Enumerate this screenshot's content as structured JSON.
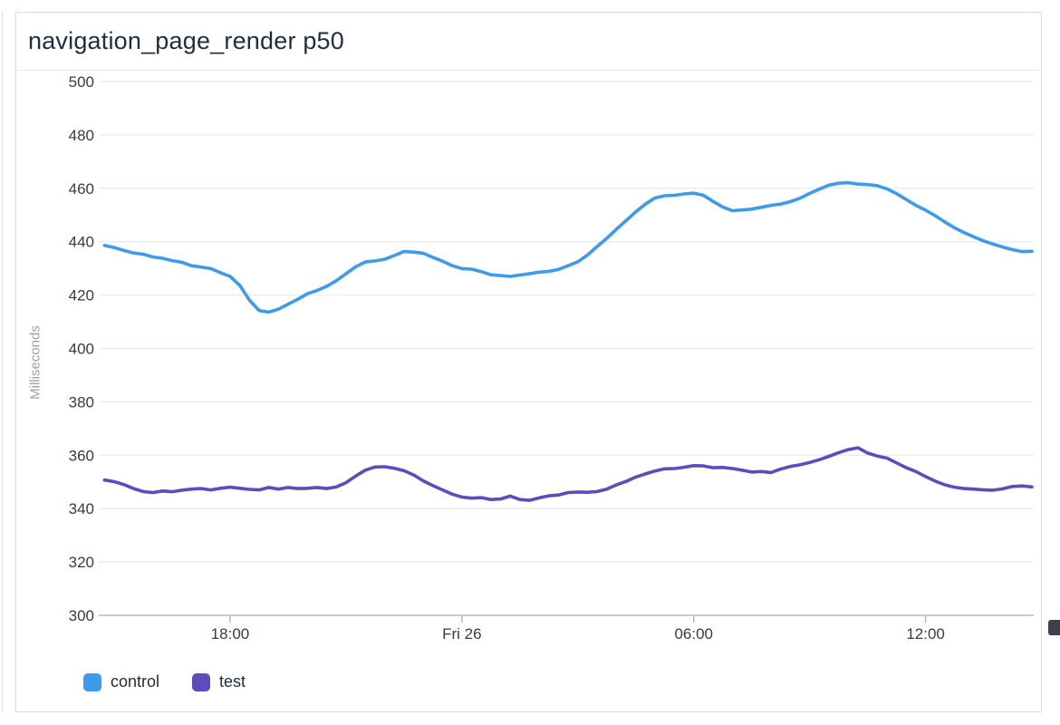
{
  "panel": {
    "title": "navigation_page_render p50"
  },
  "chart_data": {
    "type": "line",
    "title": "navigation_page_render p50",
    "xlabel": "",
    "ylabel": "Milliseconds",
    "ylim": [
      300,
      500
    ],
    "y_ticks": [
      300,
      320,
      340,
      360,
      380,
      400,
      420,
      440,
      460,
      480,
      500
    ],
    "x_unit_hours_relative_to": "Fri 26 00:00",
    "xlim": [
      -9.4,
      14.8
    ],
    "x_ticks": [
      {
        "h": -6,
        "label": "18:00"
      },
      {
        "h": 0,
        "label": "Fri 26"
      },
      {
        "h": 6,
        "label": "06:00"
      },
      {
        "h": 12,
        "label": "12:00"
      }
    ],
    "x_start": -9.25,
    "x_step": 0.25,
    "grid": true,
    "legend_position": "bottom-left",
    "series": [
      {
        "name": "control",
        "color": "#3d9be9",
        "values": [
          438.6,
          437.8,
          436.7,
          435.8,
          435.3,
          434.3,
          433.8,
          432.9,
          432.3,
          431.0,
          430.5,
          429.9,
          428.4,
          427.0,
          423.6,
          418.1,
          414.2,
          413.6,
          414.7,
          416.6,
          418.4,
          420.5,
          421.7,
          423.3,
          425.4,
          428.0,
          430.6,
          432.4,
          432.8,
          433.4,
          434.8,
          436.3,
          436.1,
          435.7,
          434.1,
          432.7,
          431.0,
          429.9,
          429.7,
          428.8,
          427.6,
          427.3,
          427.0,
          427.5,
          428.0,
          428.6,
          428.9,
          429.6,
          431.0,
          432.5,
          435.0,
          438.2,
          441.3,
          444.7,
          447.9,
          451.2,
          454.1,
          456.4,
          457.2,
          457.4,
          457.9,
          458.2,
          457.4,
          455.1,
          453.0,
          451.6,
          451.9,
          452.2,
          452.9,
          453.6,
          454.1,
          455.0,
          456.3,
          458.1,
          459.7,
          461.2,
          461.9,
          462.1,
          461.6,
          461.4,
          461.0,
          459.8,
          458.0,
          455.8,
          453.6,
          451.8,
          449.7,
          447.4,
          445.2,
          443.4,
          441.8,
          440.3,
          439.1,
          438.0,
          437.0,
          436.3,
          436.4
        ]
      },
      {
        "name": "test",
        "color": "#5f4bbd",
        "values": [
          350.7,
          350.1,
          349.0,
          347.5,
          346.4,
          346.0,
          346.6,
          346.3,
          346.9,
          347.3,
          347.5,
          347.0,
          347.6,
          348.0,
          347.6,
          347.2,
          347.0,
          347.9,
          347.3,
          347.9,
          347.5,
          347.6,
          347.9,
          347.5,
          348.1,
          349.7,
          352.2,
          354.4,
          355.6,
          355.7,
          355.1,
          354.2,
          352.6,
          350.4,
          348.6,
          347.0,
          345.4,
          344.3,
          343.9,
          344.1,
          343.4,
          343.6,
          344.7,
          343.4,
          343.1,
          344.0,
          344.8,
          345.1,
          346.0,
          346.2,
          346.1,
          346.4,
          347.3,
          348.9,
          350.2,
          351.8,
          353.0,
          354.1,
          354.9,
          355.0,
          355.5,
          356.1,
          356.0,
          355.3,
          355.4,
          355.0,
          354.4,
          353.7,
          353.9,
          353.5,
          354.8,
          355.8,
          356.4,
          357.3,
          358.3,
          359.6,
          360.9,
          362.1,
          362.8,
          360.8,
          359.7,
          358.9,
          357.1,
          355.3,
          353.9,
          352.0,
          350.3,
          348.9,
          348.0,
          347.5,
          347.3,
          347.0,
          346.9,
          347.4,
          348.3,
          348.5,
          348.1
        ]
      }
    ]
  }
}
